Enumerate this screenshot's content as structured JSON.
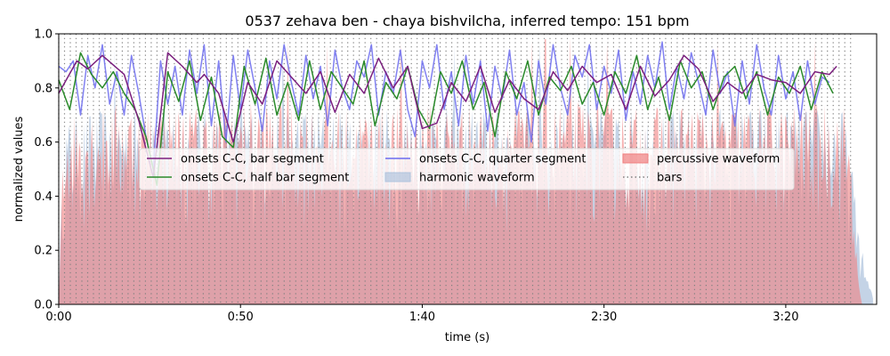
{
  "chart_data": {
    "type": "area",
    "title": "0537 zehava ben - chaya bishvilcha, inferred tempo: 151 bpm",
    "xlabel": "time (s)",
    "ylabel": "normalized values",
    "xlim": [
      0,
      225
    ],
    "ylim": [
      0,
      1.0
    ],
    "x_ticks": [
      0,
      50,
      100,
      150,
      200
    ],
    "x_tick_labels": [
      "0:00",
      "0:50",
      "1:40",
      "2:30",
      "3:20"
    ],
    "y_ticks": [
      0.0,
      0.2,
      0.4,
      0.6,
      0.8,
      1.0
    ],
    "y_tick_labels": [
      "0.0",
      "0.2",
      "0.4",
      "0.6",
      "0.8",
      "1.0"
    ],
    "tempo_bpm": 151,
    "bar_line_spacing_s": 1.59,
    "bar_line_span": [
      0,
      219
    ],
    "legend": {
      "placement": "center",
      "entries": [
        {
          "label": "onsets C-C, bar segment",
          "color": "#7b1f7e",
          "style": "line"
        },
        {
          "label": "onsets C-C, half bar segment",
          "color": "#2a8a2a",
          "style": "line"
        },
        {
          "label": "onsets C-C, quarter segment",
          "color": "#6b6bef",
          "style": "line"
        },
        {
          "label": "harmonic waveform",
          "color": "#b0c4de",
          "style": "patch"
        },
        {
          "label": "percussive waveform",
          "color": "#f08080",
          "style": "patch"
        },
        {
          "label": "bars",
          "color": "#808080",
          "style": "dotted"
        }
      ]
    },
    "series": [
      {
        "name": "onsets C-C, bar segment",
        "color": "#7b1f7e",
        "x": [
          0,
          5,
          8,
          12,
          18,
          22,
          26,
          30,
          34,
          38,
          40,
          44,
          48,
          52,
          56,
          60,
          64,
          68,
          72,
          76,
          80,
          84,
          88,
          92,
          96,
          100,
          104,
          108,
          112,
          116,
          120,
          124,
          128,
          132,
          136,
          140,
          144,
          148,
          152,
          156,
          160,
          164,
          168,
          172,
          176,
          180,
          184,
          188,
          192,
          196,
          200,
          204,
          208,
          212,
          214
        ],
        "y": [
          0.78,
          0.9,
          0.87,
          0.92,
          0.85,
          0.68,
          0.47,
          0.93,
          0.88,
          0.82,
          0.85,
          0.78,
          0.6,
          0.82,
          0.74,
          0.9,
          0.84,
          0.78,
          0.86,
          0.71,
          0.85,
          0.78,
          0.91,
          0.8,
          0.88,
          0.65,
          0.67,
          0.82,
          0.75,
          0.88,
          0.71,
          0.83,
          0.76,
          0.72,
          0.86,
          0.79,
          0.88,
          0.82,
          0.85,
          0.72,
          0.88,
          0.77,
          0.83,
          0.92,
          0.87,
          0.75,
          0.82,
          0.78,
          0.85,
          0.83,
          0.82,
          0.78,
          0.86,
          0.85,
          0.88
        ]
      },
      {
        "name": "onsets C-C, half bar segment",
        "color": "#2a8a2a",
        "x": [
          0,
          3,
          6,
          9,
          12,
          15,
          18,
          21,
          24,
          27,
          30,
          33,
          36,
          39,
          42,
          45,
          48,
          51,
          54,
          57,
          60,
          63,
          66,
          69,
          72,
          75,
          78,
          81,
          84,
          87,
          90,
          93,
          96,
          99,
          102,
          105,
          108,
          111,
          114,
          117,
          120,
          123,
          126,
          129,
          132,
          135,
          138,
          141,
          144,
          147,
          150,
          153,
          156,
          159,
          162,
          165,
          168,
          171,
          174,
          177,
          180,
          183,
          186,
          189,
          192,
          195,
          198,
          201,
          204,
          207,
          210,
          213
        ],
        "y": [
          0.83,
          0.72,
          0.93,
          0.85,
          0.8,
          0.86,
          0.78,
          0.72,
          0.62,
          0.44,
          0.86,
          0.75,
          0.9,
          0.68,
          0.84,
          0.62,
          0.58,
          0.88,
          0.74,
          0.91,
          0.7,
          0.82,
          0.68,
          0.9,
          0.72,
          0.86,
          0.8,
          0.74,
          0.9,
          0.66,
          0.82,
          0.76,
          0.88,
          0.72,
          0.65,
          0.86,
          0.78,
          0.9,
          0.72,
          0.82,
          0.62,
          0.86,
          0.76,
          0.9,
          0.7,
          0.84,
          0.79,
          0.88,
          0.74,
          0.82,
          0.7,
          0.86,
          0.78,
          0.92,
          0.72,
          0.84,
          0.68,
          0.9,
          0.8,
          0.86,
          0.72,
          0.84,
          0.88,
          0.76,
          0.86,
          0.7,
          0.84,
          0.78,
          0.88,
          0.72,
          0.86,
          0.78
        ]
      },
      {
        "name": "onsets C-C, quarter segment",
        "color": "#6b6bef",
        "x": [
          0,
          2,
          4,
          6,
          8,
          10,
          12,
          14,
          16,
          18,
          20,
          22,
          24,
          26,
          28,
          30,
          32,
          34,
          36,
          38,
          40,
          42,
          44,
          46,
          48,
          50,
          52,
          54,
          56,
          58,
          60,
          62,
          64,
          66,
          68,
          70,
          72,
          74,
          76,
          78,
          80,
          82,
          84,
          86,
          88,
          90,
          92,
          94,
          96,
          98,
          100,
          102,
          104,
          106,
          108,
          110,
          112,
          114,
          116,
          118,
          120,
          122,
          124,
          126,
          128,
          130,
          132,
          134,
          136,
          138,
          140,
          142,
          144,
          146,
          148,
          150,
          152,
          154,
          156,
          158,
          160,
          162,
          164,
          166,
          168,
          170,
          172,
          174,
          176,
          178,
          180,
          182,
          184,
          186,
          188,
          190,
          192,
          194,
          196,
          198,
          200,
          202,
          204,
          206,
          208,
          210,
          212
        ],
        "y": [
          0.88,
          0.86,
          0.9,
          0.7,
          0.92,
          0.8,
          0.96,
          0.74,
          0.86,
          0.7,
          0.92,
          0.78,
          0.62,
          0.5,
          0.9,
          0.74,
          0.88,
          0.7,
          0.94,
          0.78,
          0.96,
          0.66,
          0.9,
          0.6,
          0.92,
          0.72,
          0.94,
          0.8,
          0.64,
          0.9,
          0.76,
          0.96,
          0.82,
          0.7,
          0.92,
          0.76,
          0.88,
          0.66,
          0.94,
          0.8,
          0.72,
          0.9,
          0.84,
          0.96,
          0.7,
          0.86,
          0.78,
          0.94,
          0.72,
          0.62,
          0.9,
          0.8,
          0.96,
          0.72,
          0.86,
          0.66,
          0.92,
          0.74,
          0.9,
          0.64,
          0.88,
          0.76,
          0.94,
          0.7,
          0.82,
          0.6,
          0.9,
          0.74,
          0.96,
          0.8,
          0.7,
          0.92,
          0.84,
          0.96,
          0.72,
          0.88,
          0.78,
          0.94,
          0.68,
          0.86,
          0.74,
          0.92,
          0.8,
          0.97,
          0.72,
          0.88,
          0.76,
          0.93,
          0.82,
          0.7,
          0.94,
          0.78,
          0.86,
          0.66,
          0.9,
          0.74,
          0.96,
          0.8,
          0.7,
          0.92,
          0.76,
          0.86,
          0.68,
          0.9,
          0.74,
          0.84,
          0.82
        ]
      }
    ],
    "waveforms": [
      {
        "name": "harmonic waveform",
        "color": "#b0c4de",
        "envelope_x": [
          0,
          1,
          2,
          10,
          20,
          40,
          60,
          80,
          100,
          120,
          140,
          160,
          180,
          200,
          212,
          216,
          218,
          220,
          222,
          224
        ],
        "envelope_y": [
          0.0,
          0.55,
          0.68,
          0.72,
          0.74,
          0.73,
          0.75,
          0.72,
          0.74,
          0.73,
          0.75,
          0.72,
          0.74,
          0.73,
          0.74,
          0.72,
          0.55,
          0.3,
          0.12,
          0.03
        ]
      },
      {
        "name": "percussive waveform",
        "color": "#f08080",
        "envelope_x": [
          0,
          1,
          2,
          10,
          20,
          40,
          60,
          80,
          100,
          120,
          140,
          160,
          180,
          200,
          212,
          216,
          218,
          219,
          220,
          221
        ],
        "envelope_y": [
          0.0,
          0.6,
          0.72,
          0.74,
          0.75,
          0.74,
          0.76,
          0.73,
          0.75,
          0.74,
          0.76,
          0.73,
          0.75,
          0.74,
          0.76,
          0.74,
          0.6,
          0.3,
          0.08,
          0.0
        ]
      }
    ]
  }
}
